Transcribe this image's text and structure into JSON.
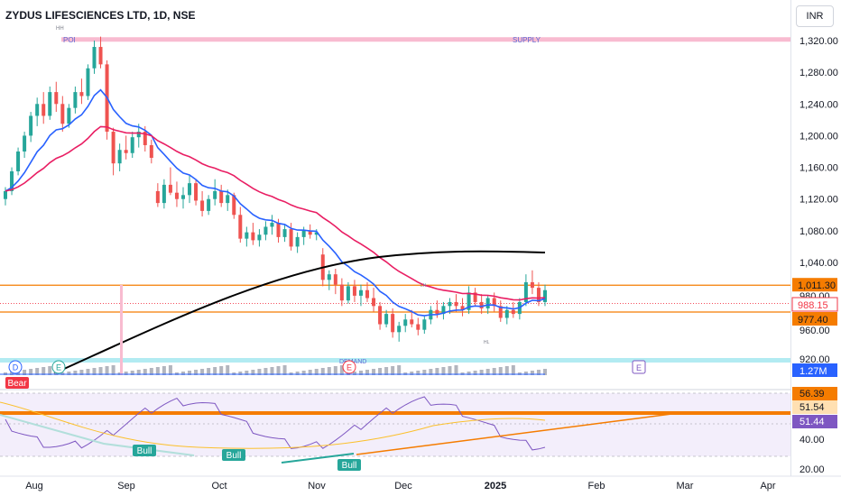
{
  "header": {
    "title": "ZYDUS LIFESCIENCES LTD, 1D, NSE",
    "currency": "INR"
  },
  "chart_data": {
    "type": "candlestick",
    "price_axis": {
      "ticks": [
        "1,320.00",
        "1,280.00",
        "1,240.00",
        "1,200.00",
        "1,160.00",
        "1,120.00",
        "1,080.00",
        "1,040.00",
        "980.00",
        "960.00",
        "920.00"
      ],
      "tick_values": [
        1320,
        1280,
        1240,
        1200,
        1160,
        1120,
        1080,
        1040,
        980,
        960,
        920
      ],
      "range": [
        906,
        1338
      ]
    },
    "time_axis": {
      "labels": [
        "Aug",
        "Sep",
        "Oct",
        "Nov",
        "Dec",
        "2025",
        "Feb",
        "Mar",
        "Apr"
      ],
      "bold": [
        false,
        false,
        false,
        false,
        false,
        true,
        false,
        false,
        false
      ]
    },
    "price_tags": [
      {
        "value": "1,011.30",
        "color": "#f57c00",
        "text_color": "#131722",
        "price": 1011.3
      },
      {
        "value": "988.15",
        "color": "#ffffff",
        "text_color": "#f23645",
        "price": 988.15,
        "border": "#f23645"
      },
      {
        "value": "977.40",
        "color": "#f57c00",
        "text_color": "#131722",
        "price": 977.4
      }
    ],
    "volume_tag": "1.27M",
    "rsi_pane": {
      "tags": [
        {
          "value": "56.39",
          "color": "#f57c00",
          "text_color": "#131722"
        },
        {
          "value": "51.54",
          "color": "#ffe0b2",
          "text_color": "#131722"
        },
        {
          "value": "51.44",
          "color": "#7e57c2",
          "text_color": "#ffffff"
        }
      ],
      "ticks": [
        "40.00",
        "20.00"
      ]
    },
    "annotations": {
      "hh": "HH",
      "poi": "POI",
      "supply": "SUPPLY",
      "lh": "LH",
      "hl": "HL",
      "demand": "DEMAND"
    },
    "markers": {
      "dividend": "D",
      "earnings": "E",
      "bear": "Bear",
      "bull": "Bull"
    },
    "colors": {
      "up": "#26a69a",
      "down": "#ef5350",
      "ema_fast": "#2962ff",
      "ema_slow": "#e91e63",
      "long_ma": "#000000",
      "level": "#f57c00",
      "supply_zone": "#f8bbd0",
      "demand_zone": "#b2ebf2",
      "rsi": "#7e57c2",
      "rsi_ma": "#fbc02d"
    },
    "candles": [
      [
        1120,
        1135,
        1112,
        1130
      ],
      [
        1130,
        1160,
        1125,
        1155
      ],
      [
        1155,
        1185,
        1150,
        1180
      ],
      [
        1180,
        1205,
        1172,
        1200
      ],
      [
        1200,
        1230,
        1192,
        1225
      ],
      [
        1225,
        1248,
        1212,
        1240
      ],
      [
        1240,
        1255,
        1215,
        1225
      ],
      [
        1225,
        1262,
        1220,
        1255
      ],
      [
        1255,
        1268,
        1230,
        1240
      ],
      [
        1240,
        1250,
        1205,
        1215
      ],
      [
        1215,
        1240,
        1210,
        1235
      ],
      [
        1235,
        1262,
        1228,
        1255
      ],
      [
        1255,
        1272,
        1240,
        1250
      ],
      [
        1250,
        1290,
        1245,
        1285
      ],
      [
        1285,
        1320,
        1278,
        1312
      ],
      [
        1312,
        1325,
        1285,
        1290
      ],
      [
        1290,
        1295,
        1195,
        1205
      ],
      [
        1205,
        1210,
        1150,
        1165
      ],
      [
        1165,
        1190,
        1155,
        1182
      ],
      [
        1182,
        1200,
        1170,
        1178
      ],
      [
        1178,
        1205,
        1172,
        1198
      ],
      [
        1198,
        1215,
        1185,
        1205
      ],
      [
        1205,
        1212,
        1180,
        1188
      ],
      [
        1188,
        1195,
        1165,
        1172
      ],
      [
        1130,
        1140,
        1110,
        1115
      ],
      [
        1115,
        1145,
        1108,
        1138
      ],
      [
        1138,
        1160,
        1125,
        1128
      ],
      [
        1128,
        1142,
        1110,
        1120
      ],
      [
        1120,
        1135,
        1108,
        1125
      ],
      [
        1125,
        1150,
        1115,
        1140
      ],
      [
        1140,
        1145,
        1112,
        1118
      ],
      [
        1118,
        1130,
        1098,
        1105
      ],
      [
        1105,
        1125,
        1100,
        1120
      ],
      [
        1120,
        1145,
        1112,
        1130
      ],
      [
        1130,
        1138,
        1110,
        1115
      ],
      [
        1115,
        1132,
        1105,
        1125
      ],
      [
        1125,
        1128,
        1095,
        1100
      ],
      [
        1100,
        1110,
        1065,
        1070
      ],
      [
        1070,
        1085,
        1060,
        1078
      ],
      [
        1078,
        1090,
        1062,
        1068
      ],
      [
        1068,
        1082,
        1060,
        1075
      ],
      [
        1075,
        1092,
        1068,
        1085
      ],
      [
        1085,
        1100,
        1075,
        1090
      ],
      [
        1090,
        1095,
        1065,
        1072
      ],
      [
        1072,
        1088,
        1066,
        1082
      ],
      [
        1082,
        1090,
        1055,
        1060
      ],
      [
        1060,
        1078,
        1052,
        1072
      ],
      [
        1072,
        1085,
        1062,
        1080
      ],
      [
        1080,
        1088,
        1070,
        1075
      ],
      [
        1075,
        1082,
        1068,
        1078
      ],
      [
        1050,
        1058,
        1010,
        1018
      ],
      [
        1018,
        1030,
        1005,
        1025
      ],
      [
        1025,
        1032,
        1000,
        1012
      ],
      [
        1012,
        1020,
        985,
        992
      ],
      [
        992,
        1015,
        988,
        1010
      ],
      [
        1010,
        1018,
        990,
        998
      ],
      [
        998,
        1012,
        985,
        1005
      ],
      [
        1005,
        1015,
        990,
        995
      ],
      [
        995,
        1008,
        978,
        985
      ],
      [
        985,
        990,
        955,
        962
      ],
      [
        962,
        980,
        958,
        975
      ],
      [
        975,
        982,
        945,
        952
      ],
      [
        952,
        965,
        940,
        960
      ],
      [
        960,
        975,
        952,
        968
      ],
      [
        968,
        980,
        958,
        962
      ],
      [
        962,
        970,
        948,
        955
      ],
      [
        955,
        972,
        950,
        968
      ],
      [
        968,
        985,
        962,
        980
      ],
      [
        980,
        992,
        970,
        975
      ],
      [
        975,
        990,
        968,
        985
      ],
      [
        985,
        995,
        975,
        990
      ],
      [
        990,
        1000,
        978,
        985
      ],
      [
        985,
        995,
        972,
        980
      ],
      [
        980,
        1010,
        975,
        1002
      ],
      [
        1002,
        1008,
        985,
        990
      ],
      [
        990,
        1000,
        975,
        982
      ],
      [
        982,
        998,
        975,
        995
      ],
      [
        995,
        1002,
        978,
        985
      ],
      [
        985,
        992,
        965,
        970
      ],
      [
        970,
        985,
        962,
        980
      ],
      [
        980,
        990,
        970,
        975
      ],
      [
        975,
        995,
        968,
        990
      ],
      [
        990,
        1025,
        985,
        1015
      ],
      [
        1015,
        1030,
        1000,
        1008
      ],
      [
        1008,
        1015,
        985,
        990
      ],
      [
        990,
        1012,
        985,
        1005
      ]
    ]
  }
}
